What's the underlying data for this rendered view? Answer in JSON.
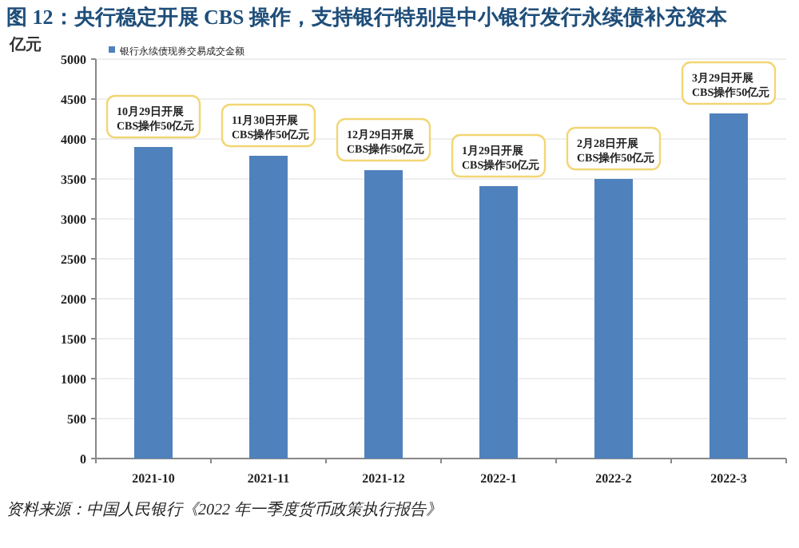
{
  "chart_data": {
    "type": "bar",
    "title": "图 12：央行稳定开展 CBS 操作，支持银行特别是中小银行发行永续债补充资本",
    "ylabel": "亿元",
    "categories": [
      "2021-10",
      "2021-11",
      "2021-12",
      "2022-1",
      "2022-2",
      "2022-3"
    ],
    "series": [
      {
        "name": "银行永续债现券交易成交金额",
        "color": "#4f81bd",
        "values": [
          3900,
          3790,
          3610,
          3410,
          3500,
          4320
        ]
      }
    ],
    "ylim": [
      0,
      5000
    ],
    "yticks": [
      0,
      500,
      1000,
      1500,
      2000,
      2500,
      3000,
      3500,
      4000,
      4500,
      5000
    ],
    "grid": "y",
    "legend": "top left",
    "annotations": [
      {
        "text": "10月29日开展\nCBS操作50亿元",
        "x": "2021-10",
        "y": 3900
      },
      {
        "text": "11月30日开展\nCBS操作50亿元",
        "x": "2021-11",
        "y": 3790
      },
      {
        "text": "12月29日开展\nCBS操作50亿元",
        "x": "2021-12",
        "y": 3610
      },
      {
        "text": "1月29日开展\nCBS操作50亿元",
        "x": "2022-1",
        "y": 3410
      },
      {
        "text": "2月28日开展\nCBS操作50亿元",
        "x": "2022-2",
        "y": 3500
      },
      {
        "text": "3月29日开展\nCBS操作50亿元",
        "x": "2022-3",
        "y": 4320
      },
      "资料来源：中国人民银行《2022 年一季度货币政策执行报告》"
    ]
  }
}
